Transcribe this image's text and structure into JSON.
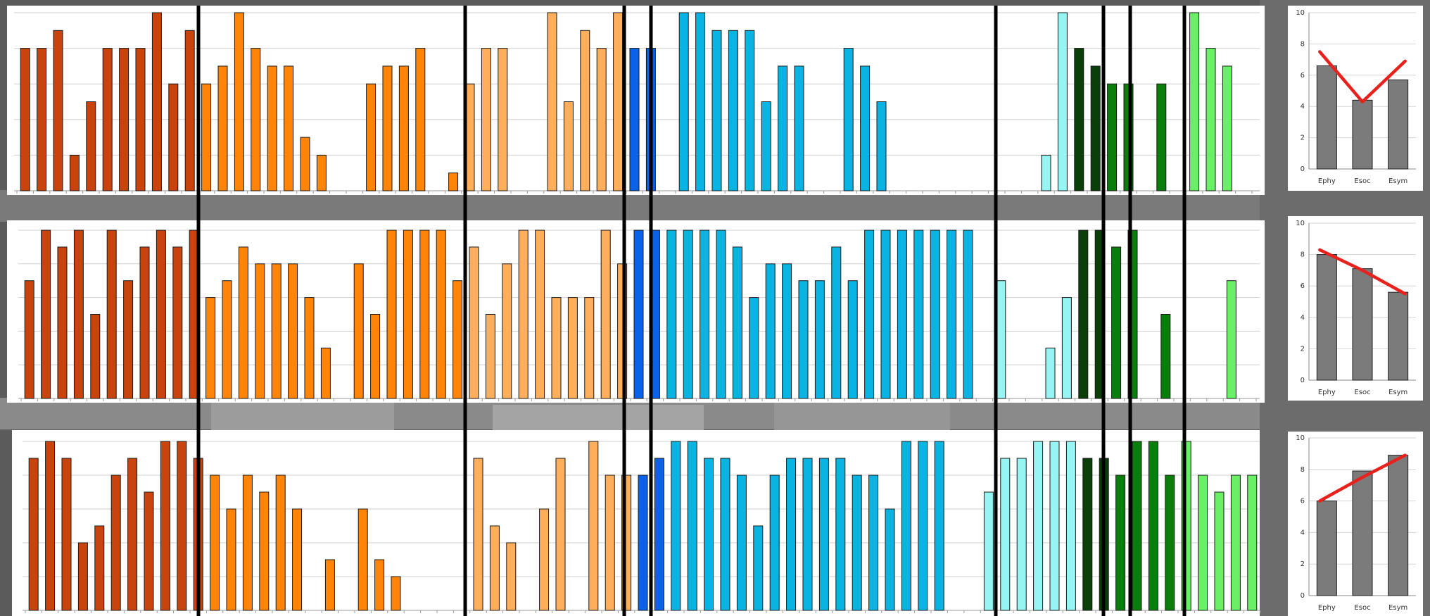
{
  "chart_data": [
    {
      "type": "bar",
      "ylim": [
        0,
        10
      ],
      "grid": true,
      "colors": [
        "#c8440c",
        "#c8440c",
        "#c8440c",
        "#c8440c",
        "#c8440c",
        "#c8440c",
        "#c8440c",
        "#c8440c",
        "#c8440c",
        "#c8440c",
        "#c8440c",
        "#ff8408",
        "#ff8408",
        "#ff8408",
        "#ff8408",
        "#ff8408",
        "#ff8408",
        "#ff8408",
        "#ff8408",
        "#ff8408",
        "#ff8408",
        "#ff8408",
        "#ff8408",
        "#ff8408",
        "#ff8408",
        "#ff8408",
        "#ff8408",
        "#ffae5c",
        "#ffae5c",
        "#ffae5c",
        "#ffae5c",
        "#ffae5c",
        "#ffae5c",
        "#ffae5c",
        "#ffae5c",
        "#ffae5c",
        "#ffae5c",
        "#0a62e8",
        "#0a62e8",
        "#0ab4e2",
        "#0ab4e2",
        "#0ab4e2",
        "#0ab4e2",
        "#0ab4e2",
        "#0ab4e2",
        "#0ab4e2",
        "#0ab4e2",
        "#0ab4e2",
        "#0ab4e2",
        "#0ab4e2",
        "#0ab4e2",
        "#0ab4e2",
        "#0ab4e2",
        "#0ab4e2",
        "#0ab4e2",
        "#0ab4e2",
        "#0ab4e2",
        "#0ab4e2",
        "#96f5f2",
        "#96f5f2",
        "#96f5f2",
        "#96f5f2",
        "#96f5f2",
        "#96f5f2",
        "#0a3f0a",
        "#0a3f0a",
        "#0a7e0a",
        "#0a7e0a",
        "#0a7e0a",
        "#0a7e0a",
        "#6af066",
        "#6af066",
        "#6af066",
        "#6af066",
        "#6af066"
      ],
      "values": [
        8,
        8,
        9,
        2,
        5,
        8,
        8,
        8,
        10,
        6,
        9,
        6,
        7,
        10,
        8,
        7,
        7,
        3,
        2,
        0,
        0,
        6,
        7,
        7,
        8,
        0,
        1,
        6,
        8,
        8,
        0,
        0,
        10,
        5,
        9,
        8,
        10,
        8,
        8,
        0,
        10,
        10,
        9,
        9,
        9,
        5,
        7,
        7,
        0,
        0,
        8,
        7,
        5,
        0,
        0,
        0,
        0,
        0,
        0,
        0,
        0,
        0,
        2,
        10,
        8,
        7,
        6,
        6,
        0,
        6,
        0,
        10,
        8,
        7,
        0
      ]
    },
    {
      "type": "bar",
      "ylim": [
        0,
        10
      ],
      "grid": true,
      "colors": [
        "#c8440c",
        "#c8440c",
        "#c8440c",
        "#c8440c",
        "#c8440c",
        "#c8440c",
        "#c8440c",
        "#c8440c",
        "#c8440c",
        "#c8440c",
        "#c8440c",
        "#ff8408",
        "#ff8408",
        "#ff8408",
        "#ff8408",
        "#ff8408",
        "#ff8408",
        "#ff8408",
        "#ff8408",
        "#ff8408",
        "#ff8408",
        "#ff8408",
        "#ff8408",
        "#ff8408",
        "#ff8408",
        "#ff8408",
        "#ff8408",
        "#ffae5c",
        "#ffae5c",
        "#ffae5c",
        "#ffae5c",
        "#ffae5c",
        "#ffae5c",
        "#ffae5c",
        "#ffae5c",
        "#ffae5c",
        "#ffae5c",
        "#0a62e8",
        "#0a62e8",
        "#0ab4e2",
        "#0ab4e2",
        "#0ab4e2",
        "#0ab4e2",
        "#0ab4e2",
        "#0ab4e2",
        "#0ab4e2",
        "#0ab4e2",
        "#0ab4e2",
        "#0ab4e2",
        "#0ab4e2",
        "#0ab4e2",
        "#0ab4e2",
        "#0ab4e2",
        "#0ab4e2",
        "#0ab4e2",
        "#0ab4e2",
        "#0ab4e2",
        "#0ab4e2",
        "#96f5f2",
        "#96f5f2",
        "#96f5f2",
        "#96f5f2",
        "#96f5f2",
        "#96f5f2",
        "#0a3f0a",
        "#0a3f0a",
        "#0a7e0a",
        "#0a7e0a",
        "#0a7e0a",
        "#0a7e0a",
        "#6af066",
        "#6af066",
        "#6af066",
        "#6af066",
        "#6af066"
      ],
      "values": [
        7,
        10,
        9,
        10,
        5,
        10,
        7,
        9,
        10,
        9,
        10,
        6,
        7,
        9,
        8,
        8,
        8,
        6,
        3,
        0,
        8,
        5,
        10,
        10,
        10,
        10,
        7,
        9,
        5,
        8,
        10,
        10,
        6,
        6,
        6,
        10,
        8,
        10,
        10,
        10,
        10,
        10,
        10,
        9,
        6,
        8,
        8,
        7,
        7,
        9,
        7,
        10,
        10,
        10,
        10,
        10,
        10,
        10,
        0,
        7,
        0,
        0,
        3,
        6,
        10,
        10,
        9,
        10,
        0,
        5,
        0,
        0,
        0,
        7,
        0
      ]
    },
    {
      "type": "bar",
      "ylim": [
        0,
        10
      ],
      "grid": true,
      "colors": [
        "#c8440c",
        "#c8440c",
        "#c8440c",
        "#c8440c",
        "#c8440c",
        "#c8440c",
        "#c8440c",
        "#c8440c",
        "#c8440c",
        "#c8440c",
        "#c8440c",
        "#ff8408",
        "#ff8408",
        "#ff8408",
        "#ff8408",
        "#ff8408",
        "#ff8408",
        "#ff8408",
        "#ff8408",
        "#ff8408",
        "#ff8408",
        "#ff8408",
        "#ff8408",
        "#ff8408",
        "#ff8408",
        "#ff8408",
        "#ff8408",
        "#ffae5c",
        "#ffae5c",
        "#ffae5c",
        "#ffae5c",
        "#ffae5c",
        "#ffae5c",
        "#ffae5c",
        "#ffae5c",
        "#ffae5c",
        "#ffae5c",
        "#0a62e8",
        "#0a62e8",
        "#0ab4e2",
        "#0ab4e2",
        "#0ab4e2",
        "#0ab4e2",
        "#0ab4e2",
        "#0ab4e2",
        "#0ab4e2",
        "#0ab4e2",
        "#0ab4e2",
        "#0ab4e2",
        "#0ab4e2",
        "#0ab4e2",
        "#0ab4e2",
        "#0ab4e2",
        "#0ab4e2",
        "#0ab4e2",
        "#0ab4e2",
        "#0ab4e2",
        "#0ab4e2",
        "#96f5f2",
        "#96f5f2",
        "#96f5f2",
        "#96f5f2",
        "#96f5f2",
        "#96f5f2",
        "#0a3f0a",
        "#0a3f0a",
        "#0a7e0a",
        "#0a7e0a",
        "#0a7e0a",
        "#0a7e0a",
        "#6af066",
        "#6af066",
        "#6af066",
        "#6af066",
        "#6af066"
      ],
      "values": [
        9,
        10,
        9,
        4,
        5,
        8,
        9,
        7,
        10,
        10,
        9,
        8,
        6,
        8,
        7,
        8,
        6,
        0,
        3,
        0,
        6,
        3,
        2,
        0,
        0,
        0,
        0,
        9,
        5,
        4,
        0,
        6,
        9,
        0,
        10,
        8,
        8,
        8,
        9,
        10,
        10,
        9,
        9,
        8,
        5,
        8,
        9,
        9,
        9,
        9,
        8,
        8,
        6,
        10,
        10,
        10,
        0,
        0,
        7,
        9,
        9,
        10,
        10,
        10,
        9,
        9,
        8,
        10,
        10,
        8,
        10,
        8,
        7,
        8,
        8
      ]
    },
    {
      "type": "bar",
      "ylim": [
        0,
        10
      ],
      "categories": [
        "Ephy",
        "Esoc",
        "Esym"
      ],
      "values": [
        6.6,
        4.4,
        5.7
      ],
      "trend": [
        7.5,
        4.3,
        6.9
      ],
      "ticks": [
        "0",
        "2",
        "4",
        "6",
        "8",
        "10"
      ],
      "grid": true
    },
    {
      "type": "bar",
      "ylim": [
        0,
        10
      ],
      "categories": [
        "Ephy",
        "Esoc",
        "Esym"
      ],
      "values": [
        8.0,
        7.1,
        5.6
      ],
      "trend": [
        8.3,
        7.0,
        5.5
      ],
      "ticks": [
        "0",
        "2",
        "4",
        "6",
        "8",
        "10"
      ],
      "grid": true
    },
    {
      "type": "bar",
      "ylim": [
        0,
        10
      ],
      "categories": [
        "Ephy",
        "Esoc",
        "Esym"
      ],
      "values": [
        6.0,
        7.9,
        8.9
      ],
      "trend": [
        6.0,
        7.5,
        8.9
      ],
      "ticks": [
        "0",
        "2",
        "4",
        "6",
        "8",
        "10"
      ],
      "grid": true
    }
  ]
}
